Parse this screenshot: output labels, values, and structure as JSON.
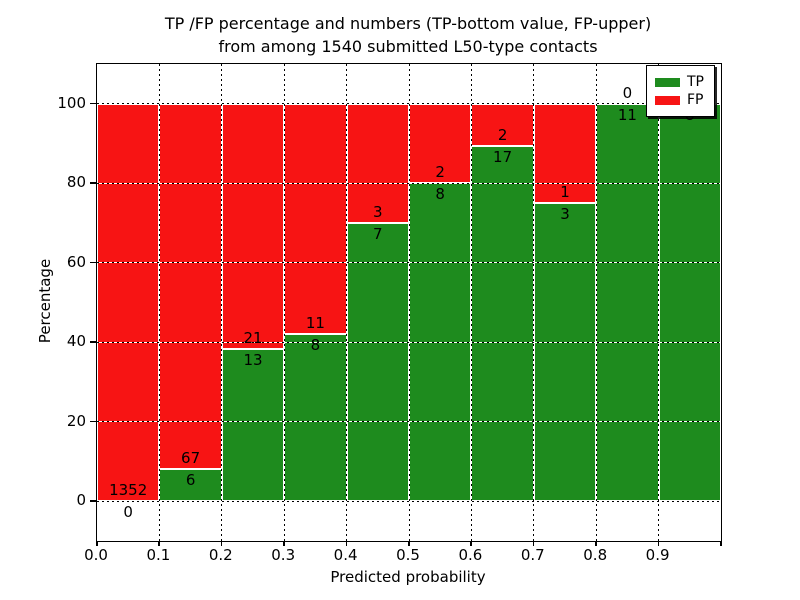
{
  "title": {
    "line1": "TP /FP percentage and numbers (TP-bottom value, FP-upper)",
    "line2": "from among 1540 submitted L50-type contacts"
  },
  "chart_data": {
    "type": "bar",
    "stacked": true,
    "normalized": "each bin scaled to 100%",
    "title": "TP /FP percentage and numbers (TP-bottom value, FP-upper) from among 1540 submitted L50-type contacts",
    "xlabel": "Predicted probability",
    "ylabel": "Percentage",
    "xlim": [
      0.0,
      1.0
    ],
    "ylim": [
      -10,
      110
    ],
    "grid": true,
    "x_tick_labels": [
      "0.0",
      "0.1",
      "0.2",
      "0.3",
      "0.4",
      "0.5",
      "0.6",
      "0.7",
      "0.8",
      "0.9"
    ],
    "y_tick_values": [
      0,
      20,
      40,
      60,
      80,
      100
    ],
    "y_tick_labels": [
      "0",
      "20",
      "40",
      "60",
      "80",
      "100"
    ],
    "categories": [
      "0.0-0.1",
      "0.1-0.2",
      "0.2-0.3",
      "0.3-0.4",
      "0.4-0.5",
      "0.5-0.6",
      "0.6-0.7",
      "0.7-0.8",
      "0.8-0.9",
      "0.9-1.0"
    ],
    "series": [
      {
        "name": "TP",
        "color": "#1e8b1e",
        "counts": [
          0,
          6,
          13,
          8,
          7,
          8,
          17,
          3,
          11,
          8
        ]
      },
      {
        "name": "FP",
        "color": "#f71414",
        "counts": [
          1352,
          67,
          21,
          11,
          3,
          2,
          2,
          1,
          0,
          0
        ]
      }
    ],
    "tp_percent_per_bin": [
      0,
      8.2,
      38.2,
      42.1,
      70,
      80,
      89.5,
      75,
      100,
      100
    ],
    "total_contacts": 1540,
    "legend": {
      "position": "upper right",
      "entries": [
        {
          "label": "TP",
          "color": "#1e8b1e"
        },
        {
          "label": "FP",
          "color": "#f71414"
        }
      ]
    }
  }
}
